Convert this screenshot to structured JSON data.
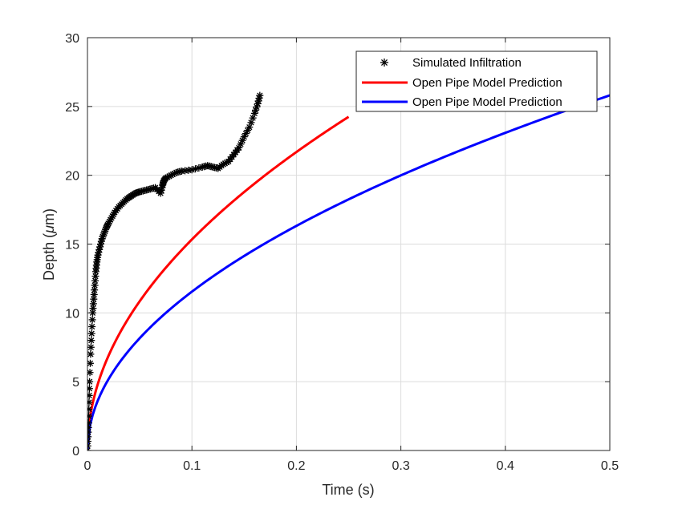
{
  "chart_data": {
    "type": "line",
    "xlabel": "Time (s)",
    "ylabel_prefix": "Depth (",
    "ylabel_mu": "μ",
    "ylabel_suffix": "m)",
    "xlim": [
      0,
      0.5
    ],
    "ylim": [
      0,
      30
    ],
    "xticks": [
      0,
      0.1,
      0.2,
      0.3,
      0.4,
      0.5
    ],
    "xtick_labels": [
      "0",
      "0.1",
      "0.2",
      "0.3",
      "0.4",
      "0.5"
    ],
    "yticks": [
      0,
      5,
      10,
      15,
      20,
      25,
      30
    ],
    "ytick_labels": [
      "0",
      "5",
      "10",
      "15",
      "20",
      "25",
      "30"
    ],
    "grid": true,
    "legend_position": "top-right",
    "series": [
      {
        "name": "Simulated Infiltration",
        "kind": "markers",
        "marker": "asterisk",
        "color": "#000000",
        "x": [
          0,
          0.0005,
          0.001,
          0.0015,
          0.002,
          0.003,
          0.004,
          0.005,
          0.006,
          0.007,
          0.008,
          0.009,
          0.01,
          0.012,
          0.014,
          0.016,
          0.018,
          0.02,
          0.023,
          0.026,
          0.03,
          0.034,
          0.038,
          0.042,
          0.046,
          0.05,
          0.055,
          0.06,
          0.065,
          0.07,
          0.072,
          0.073,
          0.075,
          0.08,
          0.085,
          0.09,
          0.1,
          0.11,
          0.115,
          0.12,
          0.125,
          0.13,
          0.135,
          0.14,
          0.145,
          0.15,
          0.155,
          0.16,
          0.163,
          0.165
        ],
        "y": [
          0,
          1,
          2,
          3.5,
          5,
          7,
          8.5,
          10,
          11,
          12,
          13,
          13.7,
          14.2,
          14.8,
          15.4,
          15.8,
          16.2,
          16.5,
          16.9,
          17.3,
          17.7,
          18.0,
          18.3,
          18.5,
          18.7,
          18.8,
          18.9,
          19.0,
          19.1,
          18.7,
          19.3,
          19.6,
          19.8,
          20.0,
          20.2,
          20.3,
          20.4,
          20.6,
          20.7,
          20.6,
          20.5,
          20.8,
          21.0,
          21.5,
          22.0,
          22.8,
          23.5,
          24.5,
          25.2,
          25.8
        ]
      },
      {
        "name": "Open Pipe Model Prediction",
        "kind": "line",
        "color": "#ff0000",
        "model": "sqrt",
        "coef": 48.5,
        "x_end": 0.25
      },
      {
        "name": "Open Pipe Model Prediction",
        "kind": "line",
        "color": "#0000ff",
        "model": "sqrt",
        "coef": 36.5,
        "x_end": 0.5
      }
    ]
  }
}
